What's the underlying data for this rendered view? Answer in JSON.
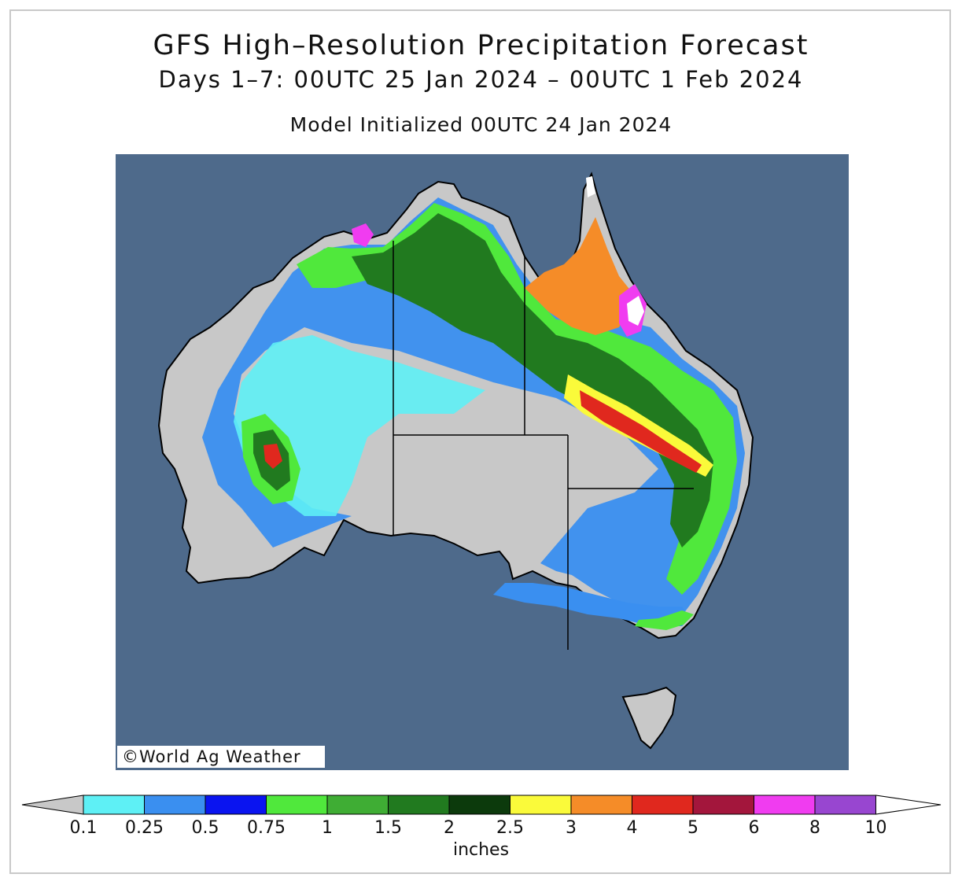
{
  "title": {
    "line1": "GFS High–Resolution Precipitation Forecast",
    "line2": "Days 1–7: 00UTC 25 Jan 2024 – 00UTC 1 Feb 2024",
    "line3": "Model Initialized 00UTC 24 Jan 2024"
  },
  "credit": "©World Ag Weather",
  "colors": {
    "ocean": "#4e6a8b",
    "land_dry": "#c8c8c8",
    "coast": "#000000"
  },
  "legend": {
    "unit": "inches",
    "bins": [
      {
        "label": "0.1",
        "color": "#c8c8c8"
      },
      {
        "label": "0.25",
        "color": "#5ef0f5"
      },
      {
        "label": "0.5",
        "color": "#3a8ff0"
      },
      {
        "label": "0.75",
        "color": "#0a14f0"
      },
      {
        "label": "1",
        "color": "#50e83c"
      },
      {
        "label": "1.5",
        "color": "#3fad34"
      },
      {
        "label": "2",
        "color": "#217a1f"
      },
      {
        "label": "2.5",
        "color": "#0c3a0c"
      },
      {
        "label": "3",
        "color": "#fafa3a"
      },
      {
        "label": "4",
        "color": "#f58c28"
      },
      {
        "label": "5",
        "color": "#e0281e"
      },
      {
        "label": "6",
        "color": "#a3163c"
      },
      {
        "label": "8",
        "color": "#f03cf0"
      },
      {
        "label": "10",
        "color": "#9846d0"
      }
    ],
    "over_color": "#ffffff"
  }
}
